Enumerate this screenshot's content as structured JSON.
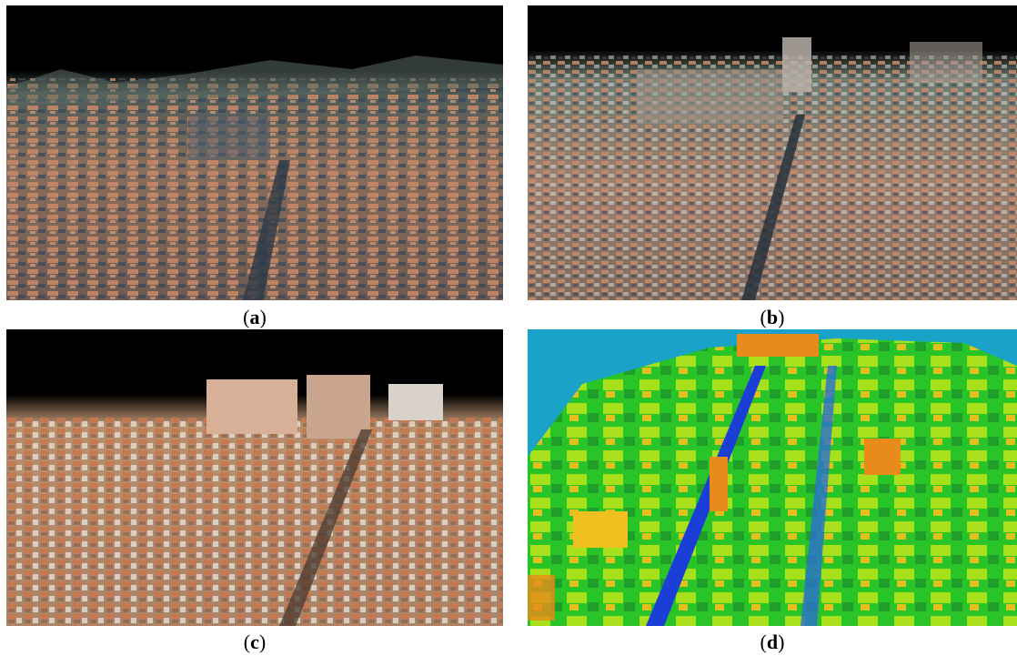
{
  "figure": {
    "panels": [
      {
        "id": "a",
        "caption_open": "(",
        "caption_letter": "a",
        "caption_close": ")"
      },
      {
        "id": "b",
        "caption_open": "(",
        "caption_letter": "b",
        "caption_close": ")"
      },
      {
        "id": "c",
        "caption_open": "(",
        "caption_letter": "c",
        "caption_close": ")"
      },
      {
        "id": "d",
        "caption_open": "(",
        "caption_letter": "d",
        "caption_close": ")"
      }
    ]
  },
  "colors": {
    "sky_dark": "#000000",
    "sky_blue": "#1aa3c9",
    "roof": "#c98a68",
    "shadow": "#3b4a5a",
    "height_low": "#1b3fd6",
    "height_mid": "#2fd12c",
    "height_high": "#e98b1a"
  }
}
